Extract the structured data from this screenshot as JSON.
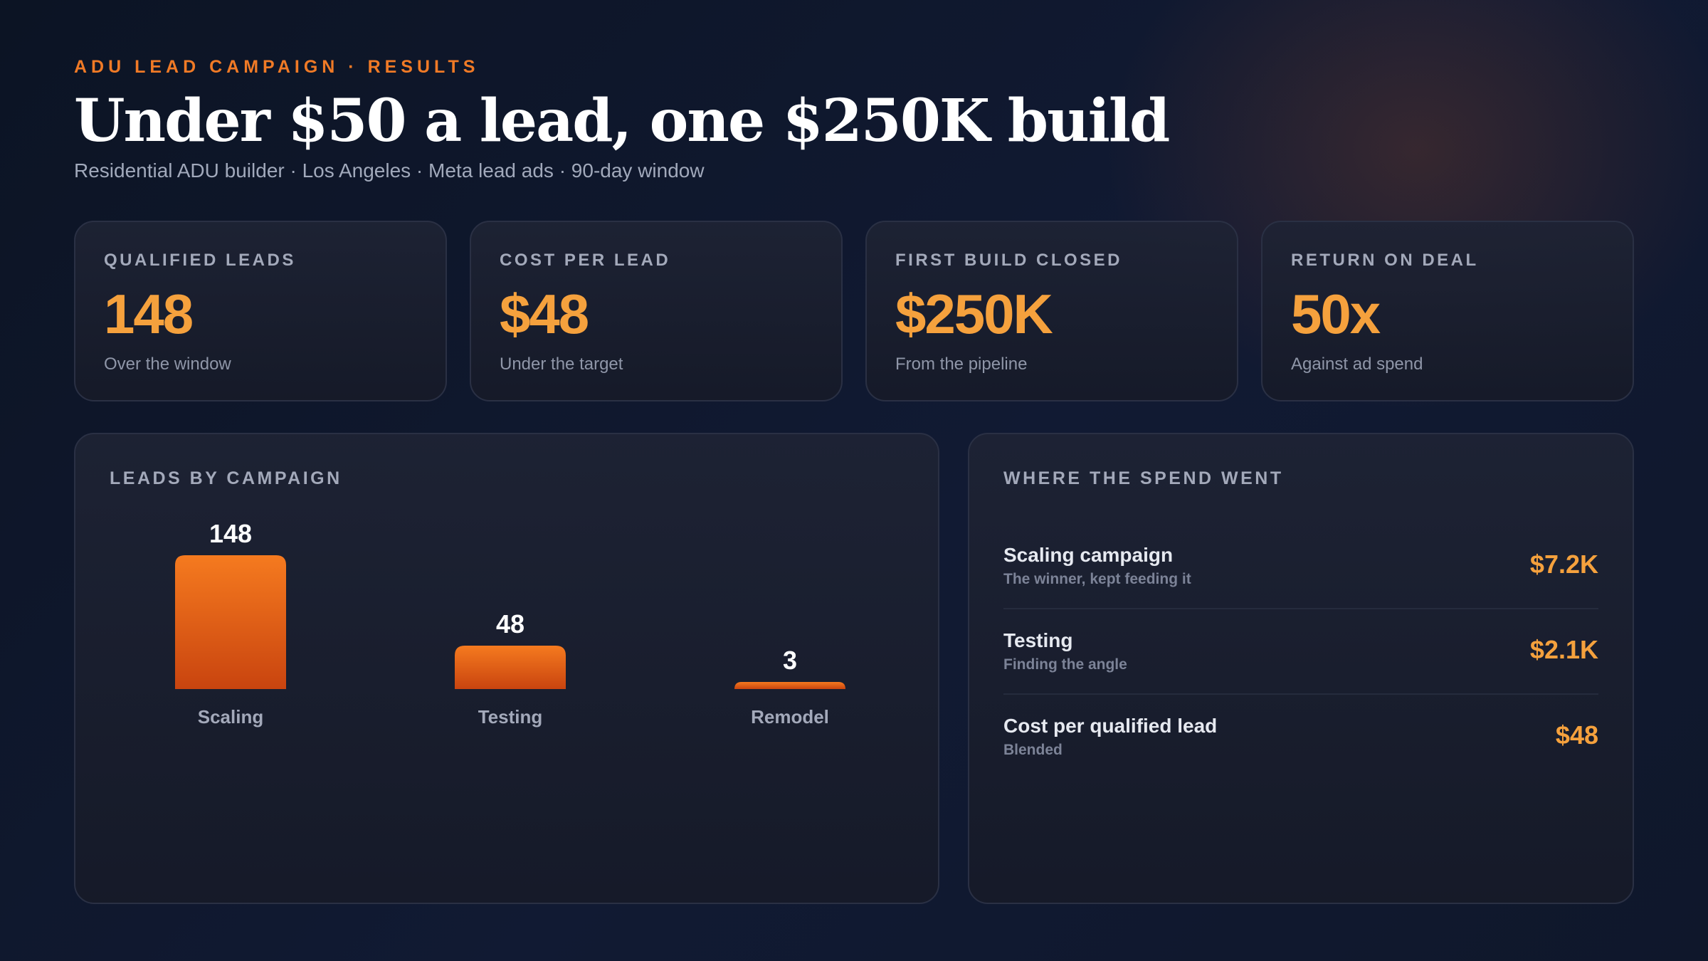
{
  "header": {
    "eyebrow": "ADU LEAD CAMPAIGN · RESULTS",
    "headline": "Under $50 a lead, one $250K build",
    "subhead": "Residential ADU builder · Los Angeles · Meta lead ads · 90-day window"
  },
  "kpis": [
    {
      "label": "QUALIFIED LEADS",
      "value": "148",
      "note": "Over the window"
    },
    {
      "label": "COST PER LEAD",
      "value": "$48",
      "note": "Under the target"
    },
    {
      "label": "FIRST BUILD CLOSED",
      "value": "$250K",
      "note": "From the pipeline"
    },
    {
      "label": "RETURN ON DEAL",
      "value": "50x",
      "note": "Against ad spend"
    }
  ],
  "leads_panel": {
    "title": "LEADS BY CAMPAIGN"
  },
  "spend_panel": {
    "title": "WHERE THE SPEND WENT",
    "rows": [
      {
        "name": "Scaling campaign",
        "sub": "The winner, kept feeding it",
        "amount": "$7.2K"
      },
      {
        "name": "Testing",
        "sub": "Finding the angle",
        "amount": "$2.1K"
      },
      {
        "name": "Cost per qualified lead",
        "sub": "Blended",
        "amount": "$48"
      }
    ]
  },
  "colors": {
    "accent": "#f5a13d",
    "bar_top": "#f57a1f",
    "bar_bottom": "#c9440f"
  },
  "chart_data": {
    "type": "bar",
    "title": "LEADS BY CAMPAIGN",
    "categories": [
      "Scaling",
      "Testing",
      "Remodel"
    ],
    "values": [
      148,
      48,
      3
    ],
    "data_labels": [
      "148",
      "48",
      "3"
    ],
    "grid": false,
    "legend": "none"
  }
}
